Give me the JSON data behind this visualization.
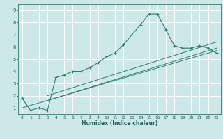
{
  "xlabel": "Humidex (Indice chaleur)",
  "ylabel": "",
  "bg_color": "#cce8e8",
  "grid_color": "#ffffff",
  "line_color": "#2e7d6e",
  "xlim": [
    -0.5,
    23.5
  ],
  "ylim": [
    0.5,
    9.5
  ],
  "xticks": [
    0,
    1,
    2,
    3,
    4,
    5,
    6,
    7,
    8,
    9,
    10,
    11,
    12,
    13,
    14,
    15,
    16,
    17,
    18,
    19,
    20,
    21,
    22,
    23
  ],
  "yticks": [
    1,
    2,
    3,
    4,
    5,
    6,
    7,
    8,
    9
  ],
  "line1_x": [
    0,
    1,
    2,
    3,
    4,
    5,
    6,
    7,
    8,
    9,
    10,
    11,
    12,
    13,
    14,
    15,
    16,
    17,
    18,
    19,
    20,
    21,
    22,
    23
  ],
  "line1_y": [
    1.8,
    0.8,
    1.0,
    0.8,
    3.5,
    3.7,
    4.0,
    4.0,
    4.3,
    4.7,
    5.2,
    5.5,
    6.2,
    7.0,
    7.8,
    8.7,
    8.7,
    7.4,
    6.1,
    5.9,
    5.9,
    6.1,
    5.9,
    5.5
  ],
  "line2_x": [
    0,
    23
  ],
  "line2_y": [
    1.0,
    5.7
  ],
  "line3_x": [
    3,
    23
  ],
  "line3_y": [
    1.6,
    5.9
  ],
  "line4_x": [
    3,
    23
  ],
  "line4_y": [
    2.0,
    6.4
  ],
  "xlabel_fontsize": 5.5,
  "tick_fontsize": 4.5
}
